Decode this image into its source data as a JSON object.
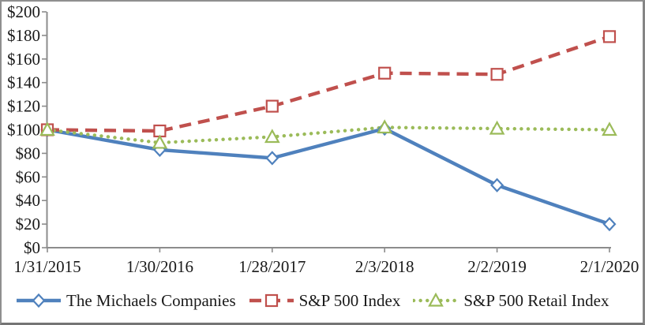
{
  "chart_data": {
    "type": "line",
    "title": "",
    "xlabel": "",
    "ylabel": "",
    "grid": false,
    "legend_position": "bottom",
    "categories": [
      "1/31/2015",
      "1/30/2016",
      "1/28/2017",
      "2/3/2018",
      "2/2/2019",
      "2/1/2020"
    ],
    "series": [
      {
        "name": "The Michaels Companies",
        "values": [
          100,
          83,
          76,
          101,
          53,
          20
        ],
        "color": "#4F81BD",
        "line_style": "solid",
        "marker": "diamond"
      },
      {
        "name": "S&P 500 Index",
        "values": [
          100,
          99,
          120,
          148,
          147,
          179
        ],
        "color": "#C0504D",
        "line_style": "dashed",
        "marker": "square"
      },
      {
        "name": "S&P 500 Retail Index",
        "values": [
          100,
          89,
          94,
          102,
          101,
          100
        ],
        "color": "#9BBB59",
        "line_style": "dotted",
        "marker": "triangle"
      }
    ],
    "ylim": [
      0,
      200
    ],
    "y_ticks": {
      "values": [
        0,
        20,
        40,
        60,
        80,
        100,
        120,
        140,
        160,
        180,
        200
      ],
      "labels": [
        "$0",
        "$20",
        "$40",
        "$60",
        "$80",
        "$100",
        "$120",
        "$140",
        "$160",
        "$180",
        "$200"
      ]
    }
  },
  "colors": {
    "axis": "#8C8C8C",
    "text": "#1A1A1A",
    "background": "#FFFFFF",
    "marker_fill": "#FFFFFF"
  }
}
